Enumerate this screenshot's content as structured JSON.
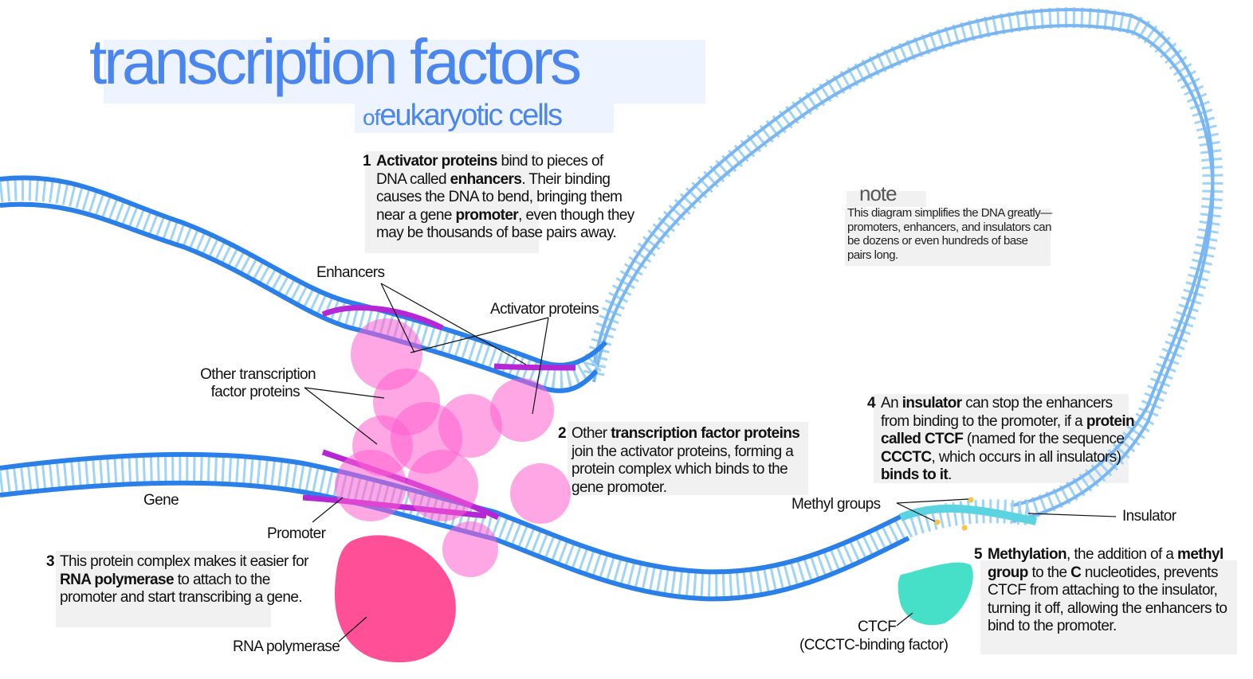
{
  "title": "transcription factors",
  "subtitle_of": "of",
  "subtitle_rest": "eukaryotic cells",
  "note": {
    "title": "note",
    "text": "This diagram simplifies the DNA greatly—promoters, enhancers, and insulators can be dozens or even hundreds of base pairs long."
  },
  "steps": [
    {
      "number": "1",
      "parts": [
        {
          "t": "Activator proteins",
          "b": true
        },
        {
          "t": " bind to pieces of DNA called "
        },
        {
          "t": "enhancers",
          "b": true
        },
        {
          "t": ". Their binding causes the DNA to bend, bringing them near a gene "
        },
        {
          "t": "promoter",
          "b": true
        },
        {
          "t": ", even though they may be thousands of base pairs away."
        }
      ]
    },
    {
      "number": "2",
      "parts": [
        {
          "t": "Other "
        },
        {
          "t": "transcription factor proteins",
          "b": true
        },
        {
          "t": " join the activator proteins, forming a protein complex which binds to the gene promoter."
        }
      ]
    },
    {
      "number": "3",
      "parts": [
        {
          "t": "This protein complex makes it easier for "
        },
        {
          "t": "RNA polymerase",
          "b": true
        },
        {
          "t": " to attach to the promoter and start transcribing a gene."
        }
      ]
    },
    {
      "number": "4",
      "parts": [
        {
          "t": "An "
        },
        {
          "t": "insulator",
          "b": true
        },
        {
          "t": " can stop the enhancers from binding to the promoter, if a "
        },
        {
          "t": "protein called CTCF",
          "b": true
        },
        {
          "t": " (named for the sequence "
        },
        {
          "t": "CCCTC",
          "b": true
        },
        {
          "t": ", which occurs in all insulators) "
        },
        {
          "t": "binds to it",
          "b": true
        },
        {
          "t": "."
        }
      ]
    },
    {
      "number": "5",
      "parts": [
        {
          "t": "Methylation",
          "b": true
        },
        {
          "t": ", the addition of a "
        },
        {
          "t": "methyl group",
          "b": true
        },
        {
          "t": " to the "
        },
        {
          "t": "C",
          "b": true
        },
        {
          "t": " nucleotides, prevents CTCF from attaching to the insulator, turning it off, allowing the enhancers to bind to the promoter."
        }
      ]
    }
  ],
  "labels": {
    "enhancers": "Enhancers",
    "activator_proteins": "Activator proteins",
    "other_tf_line1": "Other transcription",
    "other_tf_line2": "factor proteins",
    "gene": "Gene",
    "promoter": "Promoter",
    "rna_polymerase": "RNA polymerase",
    "methyl_groups": "Methyl groups",
    "insulator": "Insulator",
    "ctcf": "CTCF",
    "ctcf_full": "(CCCTC-binding factor)"
  },
  "colors": {
    "dna_blue": "#2a7fe8",
    "dna_light": "#7ab6f1",
    "dna_rungs": "#9fd3f7",
    "enhancer_purple": "#b526d4",
    "protein_pink": "#ff5fcf",
    "rna_pol": "#ff4f96",
    "ctcf": "#46e0c9",
    "insulator": "#5cd3e0",
    "methyl": "#f4c542",
    "title_blue": "#4a86ee"
  }
}
